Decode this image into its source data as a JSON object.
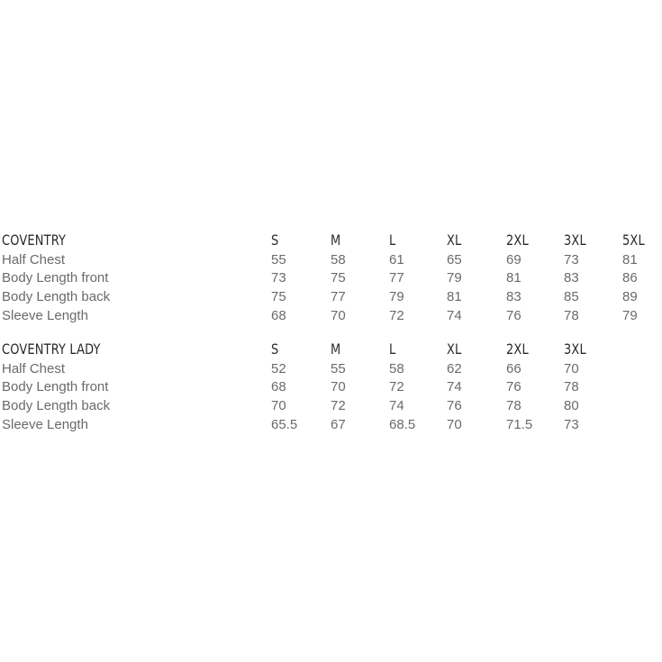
{
  "tables": [
    {
      "title": "COVENTRY",
      "sizes": [
        "S",
        "M",
        "L",
        "XL",
        "2XL",
        "3XL",
        "5XL"
      ],
      "rows": [
        {
          "label": "Half Chest",
          "values": [
            "55",
            "58",
            "61",
            "65",
            "69",
            "73",
            "81"
          ]
        },
        {
          "label": "Body Length front",
          "values": [
            "73",
            "75",
            "77",
            "79",
            "81",
            "83",
            "86"
          ]
        },
        {
          "label": "Body Length back",
          "values": [
            "75",
            "77",
            "79",
            "81",
            "83",
            "85",
            "89"
          ]
        },
        {
          "label": "Sleeve Length",
          "values": [
            "68",
            "70",
            "72",
            "74",
            "76",
            "78",
            "79"
          ]
        }
      ]
    },
    {
      "title": "COVENTRY LADY",
      "sizes": [
        "S",
        "M",
        "L",
        "XL",
        "2XL",
        "3XL"
      ],
      "rows": [
        {
          "label": "Half Chest",
          "values": [
            "52",
            "55",
            "58",
            "62",
            "66",
            "70"
          ]
        },
        {
          "label": "Body Length front",
          "values": [
            "68",
            "70",
            "72",
            "74",
            "76",
            "78"
          ]
        },
        {
          "label": "Body Length back",
          "values": [
            "70",
            "72",
            "74",
            "76",
            "78",
            "80"
          ]
        },
        {
          "label": "Sleeve Length",
          "values": [
            "65.5",
            "67",
            "68.5",
            "70",
            "71.5",
            "73"
          ]
        }
      ]
    }
  ]
}
